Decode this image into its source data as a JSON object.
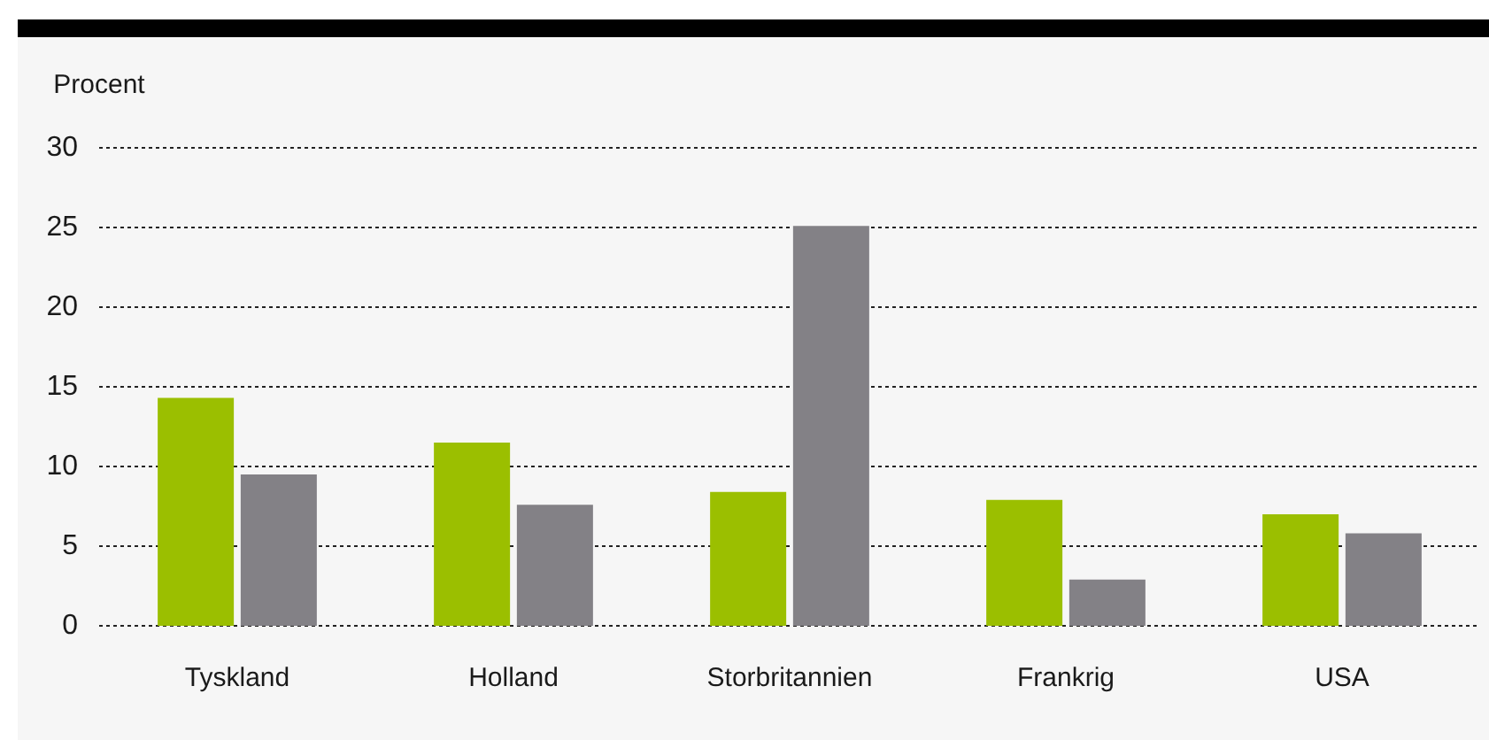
{
  "chart_data": {
    "type": "bar",
    "ylabel": "Procent",
    "categories": [
      "Tyskland",
      "Holland",
      "Storbritannien",
      "Frankrig",
      "USA"
    ],
    "series": [
      {
        "color": "#9bbf00",
        "values": [
          14.3,
          11.5,
          8.4,
          7.9,
          7.0
        ]
      },
      {
        "color": "#838186",
        "values": [
          9.5,
          7.6,
          25.1,
          2.9,
          5.8
        ]
      }
    ],
    "ylim": [
      0,
      30
    ],
    "yticks": [
      0,
      5,
      10,
      15,
      20,
      25,
      30
    ],
    "grid": "y"
  }
}
